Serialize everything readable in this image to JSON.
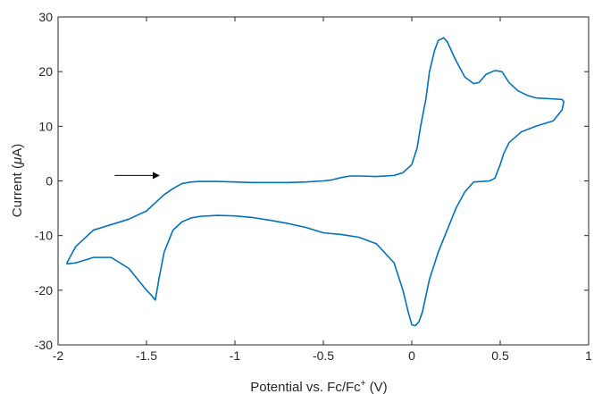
{
  "chart_data": {
    "type": "line",
    "title": "",
    "xlabel": "Potential vs. Fc/Fc",
    "xlabel_sup": "+",
    "xlabel_unit": " (V)",
    "ylabel_prefix": "Current (",
    "ylabel_mu": "μ",
    "ylabel_suffix": "A)",
    "xlim": [
      -2,
      1
    ],
    "ylim": [
      -30,
      30
    ],
    "xticks": [
      -2,
      -1.5,
      -1,
      -0.5,
      0,
      0.5,
      1
    ],
    "xtick_labels": [
      "-2",
      "-1.5",
      "-1",
      "-0.5",
      "0",
      "0.5",
      "1"
    ],
    "yticks": [
      -30,
      -20,
      -10,
      0,
      10,
      20,
      30
    ],
    "ytick_labels": [
      "-30",
      "-20",
      "-10",
      "0",
      "10",
      "20",
      "30"
    ],
    "grid": false,
    "box": true,
    "series_color": "#0072BD",
    "annotation": {
      "type": "arrow",
      "from": [
        -1.68,
        1.0
      ],
      "to": [
        -1.43,
        1.0
      ],
      "color": "#000000"
    },
    "series": [
      {
        "x": [
          -1.95,
          -1.9,
          -1.8,
          -1.7,
          -1.6,
          -1.5,
          -1.45,
          -1.4,
          -1.35,
          -1.3,
          -1.25,
          -1.2,
          -1.1,
          -1.0,
          -0.9,
          -0.8,
          -0.7,
          -0.6,
          -0.5,
          -0.45,
          -0.4,
          -0.35,
          -0.3,
          -0.2,
          -0.1,
          -0.05,
          0.0,
          0.03,
          0.05,
          0.08,
          0.1,
          0.13,
          0.15,
          0.18,
          0.2,
          0.25,
          0.3,
          0.35,
          0.38,
          0.42,
          0.47,
          0.51,
          0.55,
          0.6,
          0.65,
          0.7,
          0.8,
          0.85,
          0.86,
          0.85,
          0.8,
          0.7,
          0.62,
          0.55,
          0.52,
          0.5,
          0.47,
          0.44,
          0.4,
          0.35,
          0.3,
          0.25,
          0.2,
          0.15,
          0.1,
          0.08,
          0.06,
          0.04,
          0.02,
          0.0,
          -0.02,
          -0.05,
          -0.1,
          -0.2,
          -0.3,
          -0.4,
          -0.5,
          -0.6,
          -0.7,
          -0.8,
          -0.9,
          -1.0,
          -1.1,
          -1.2,
          -1.25,
          -1.3,
          -1.35,
          -1.4,
          -1.43,
          -1.45,
          -1.47,
          -1.5,
          -1.55,
          -1.6,
          -1.7,
          -1.8,
          -1.9,
          -1.95
        ],
        "y": [
          -15,
          -12,
          -9,
          -8,
          -7,
          -5.5,
          -4,
          -2.5,
          -1.4,
          -0.5,
          -0.2,
          -0.1,
          -0.1,
          -0.2,
          -0.3,
          -0.3,
          -0.3,
          -0.2,
          0,
          0.2,
          0.6,
          0.9,
          0.9,
          0.8,
          1,
          1.5,
          3,
          6,
          10,
          15,
          20,
          24,
          25.7,
          26.2,
          25.5,
          22,
          19,
          17.8,
          18,
          19.5,
          20.2,
          20,
          18,
          16.5,
          15.7,
          15.2,
          15,
          14.9,
          14.5,
          13,
          11,
          10,
          9,
          7,
          5,
          3,
          0.5,
          0,
          -0.1,
          -0.2,
          -2,
          -5,
          -9,
          -13,
          -18,
          -21,
          -24,
          -25.8,
          -26.5,
          -26.3,
          -24,
          -20,
          -15,
          -11.5,
          -10.3,
          -9.8,
          -9.5,
          -8.5,
          -7.8,
          -7.2,
          -6.7,
          -6.4,
          -6.3,
          -6.5,
          -6.8,
          -7.5,
          -9,
          -13,
          -18,
          -21.8,
          -21,
          -20,
          -18,
          -16,
          -14,
          -14,
          -15,
          -15.2
        ]
      }
    ]
  }
}
